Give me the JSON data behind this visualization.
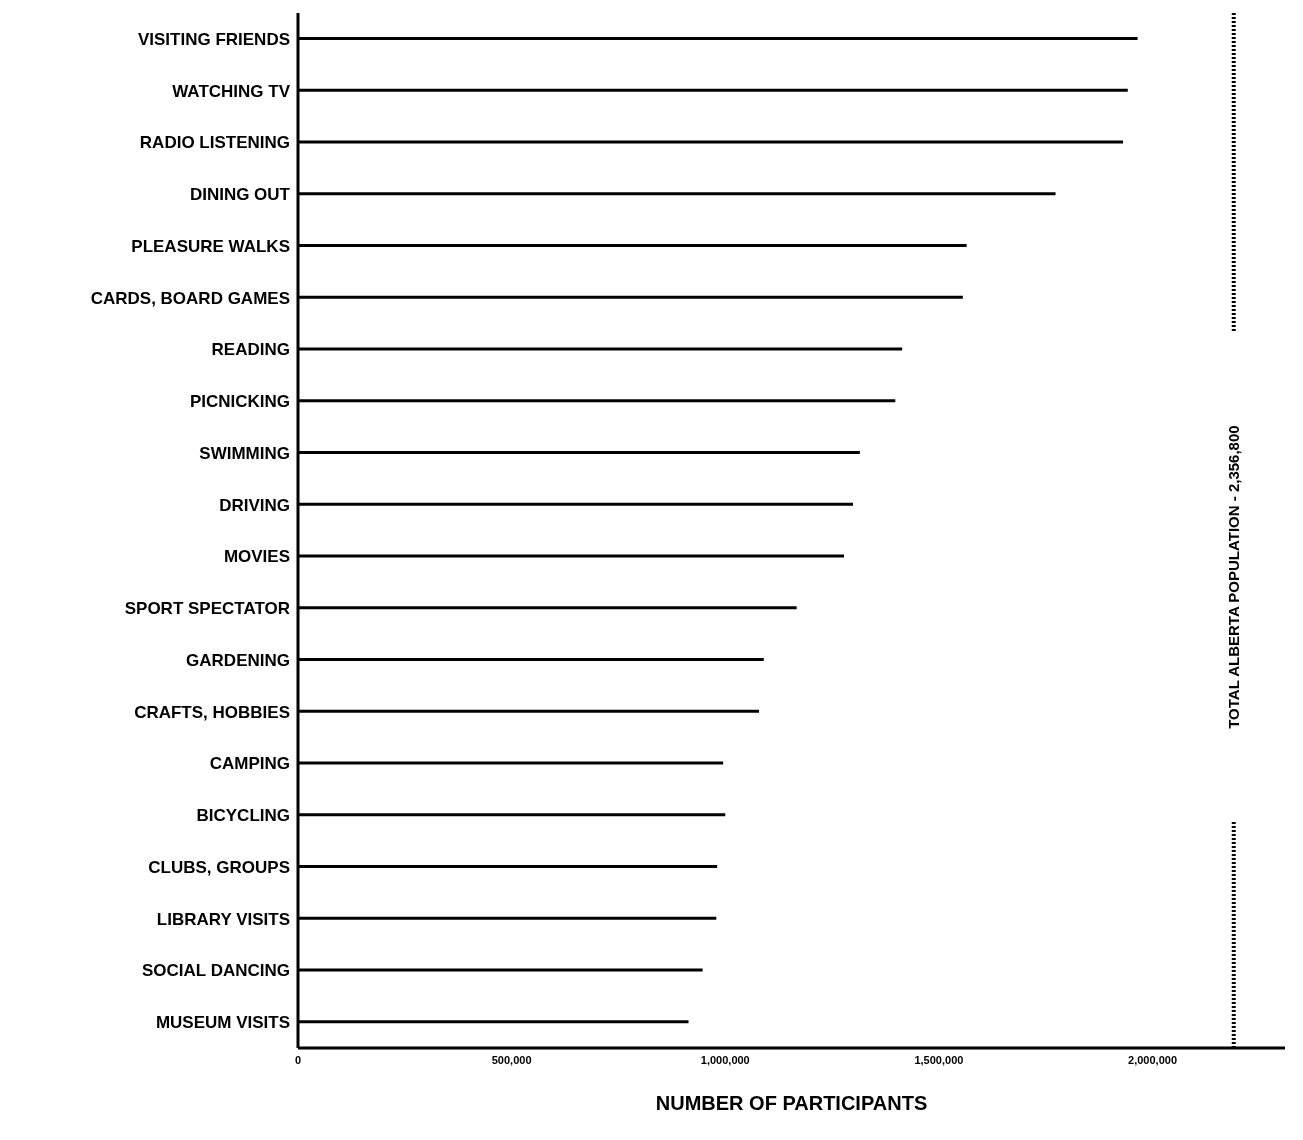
{
  "chart_data": {
    "type": "bar",
    "orientation": "horizontal",
    "xlabel": "NUMBER OF PARTICIPANTS",
    "categories": [
      "VISITING FRIENDS",
      "WATCHING TV",
      "RADIO LISTENING",
      "DINING OUT",
      "PLEASURE WALKS",
      "CARDS, BOARD GAMES",
      "READING",
      "PICNICKING",
      "SWIMMING",
      "DRIVING",
      "MOVIES",
      "SPORT SPECTATOR",
      "GARDENING",
      "CRAFTS, HOBBIES",
      "CAMPING",
      "BICYCLING",
      "CLUBS, GROUPS",
      "LIBRARY VISITS",
      "SOCIAL DANCING",
      "MUSEUM VISITS"
    ],
    "values": [
      1965000,
      1942000,
      1931000,
      1773000,
      1565000,
      1556000,
      1414000,
      1398000,
      1315000,
      1299000,
      1278000,
      1167000,
      1090000,
      1079000,
      995000,
      1000000,
      981000,
      979000,
      947000,
      914000
    ],
    "color": "#000000",
    "xlim": [
      0,
      2310000
    ],
    "xticks": [
      0,
      {
        "value": 500000,
        "label": "500,000"
      },
      {
        "value": 1000000,
        "label": "1,000,000"
      },
      {
        "value": 1500000,
        "label": "1,500,000"
      },
      {
        "value": 2000000,
        "label": "2,000,000"
      }
    ],
    "ref_lines": [
      {
        "axis": "x",
        "value": 2190000,
        "label": "TOTAL ALBERTA POPULATION - 2,356,800",
        "color": "#000000",
        "line_style": "dotted"
      }
    ],
    "grid": false
  }
}
